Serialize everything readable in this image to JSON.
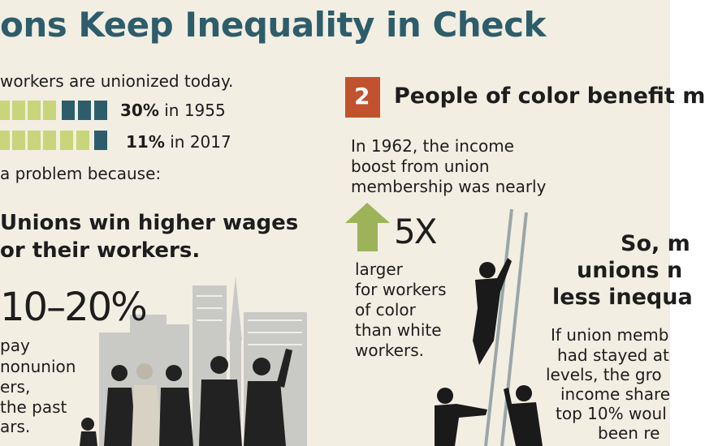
{
  "header": {
    "title": "ons Keep Inequality in Check"
  },
  "left": {
    "intro": "workers are unionized today.",
    "rows": [
      {
        "percent": "30%",
        "year": " in 1955"
      },
      {
        "percent": "11%",
        "year": " in 2017"
      }
    ],
    "lead": "a problem because:",
    "heading": [
      "Unions win higher wages",
      "or their workers."
    ],
    "stat": "10–20%",
    "stat_text": [
      "pay",
      "nonunion",
      "ers,",
      "the past",
      "ars."
    ]
  },
  "middle": {
    "number": "2",
    "heading": "People of color benefit m",
    "intro": [
      "In 1962, the income",
      "boost from union",
      "membership was nearly"
    ],
    "multiplier": "5X",
    "text": [
      "larger",
      "for workers",
      "of color",
      "than white",
      "workers."
    ]
  },
  "right": {
    "heading": [
      "So, m",
      "unions n",
      "less inequa"
    ],
    "text": [
      "If union memb",
      "had stayed at",
      "levels, the gro",
      "income share",
      "top 10% woul",
      "been re"
    ]
  }
}
